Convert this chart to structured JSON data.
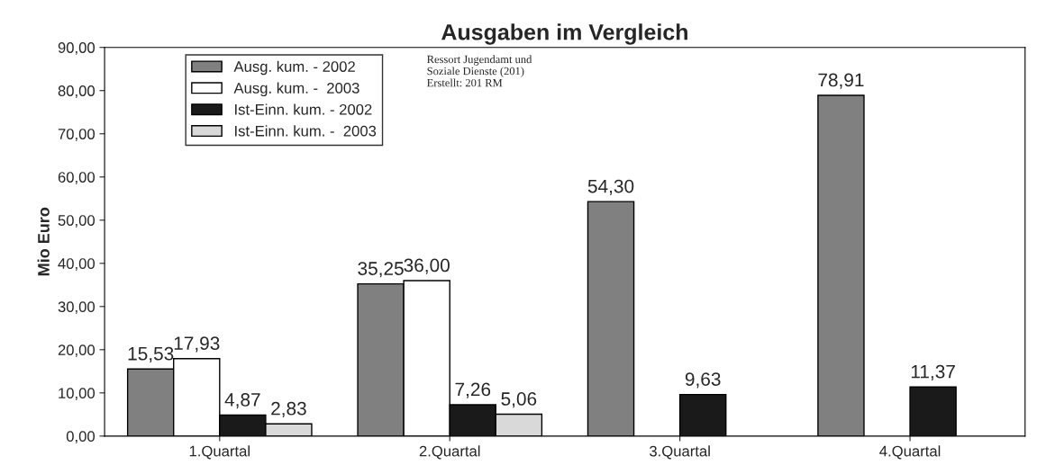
{
  "chart_data": {
    "type": "bar",
    "title": "Ausgaben im Vergleich",
    "ylabel": "Mio Euro",
    "categories": [
      "1.Quartal",
      "2.Quartal",
      "3.Quartal",
      "4.Quartal"
    ],
    "series": [
      {
        "name": "Ausg. kum. - 2002",
        "color": "#808080",
        "values": [
          15.53,
          35.25,
          54.3,
          78.91
        ],
        "value_labels": [
          "15,53",
          "35,25",
          "54,30",
          "78,91"
        ]
      },
      {
        "name": "Ausg. kum. -  2003",
        "color": "#ffffff",
        "values": [
          17.93,
          36.0,
          null,
          null
        ],
        "value_labels": [
          "17,93",
          "36,00",
          null,
          null
        ]
      },
      {
        "name": "Ist-Einn. kum. - 2002",
        "color": "#1a1a1a",
        "values": [
          4.87,
          7.26,
          9.63,
          11.37
        ],
        "value_labels": [
          "4,87",
          "7,26",
          "9,63",
          "11,37"
        ]
      },
      {
        "name": "Ist-Einn. kum. -  2003",
        "color": "#d9d9d9",
        "values": [
          2.83,
          5.06,
          null,
          null
        ],
        "value_labels": [
          "2,83",
          "5,06",
          null,
          null
        ]
      }
    ],
    "ylim": [
      0,
      90
    ],
    "yticks": [
      {
        "value": 0,
        "label": "0,00"
      },
      {
        "value": 10,
        "label": "10,00"
      },
      {
        "value": 20,
        "label": "20,00"
      },
      {
        "value": 30,
        "label": "30,00"
      },
      {
        "value": 40,
        "label": "40,00"
      },
      {
        "value": 50,
        "label": "50,00"
      },
      {
        "value": 60,
        "label": "60,00"
      },
      {
        "value": 70,
        "label": "70,00"
      },
      {
        "value": 80,
        "label": "80,00"
      },
      {
        "value": 90,
        "label": "90,00"
      }
    ],
    "legend": "top left",
    "grid": false,
    "annotations": [
      "Ressort Jugendamt und\nSoziale Dienste (201)\nErstellt: 201 RM"
    ]
  }
}
